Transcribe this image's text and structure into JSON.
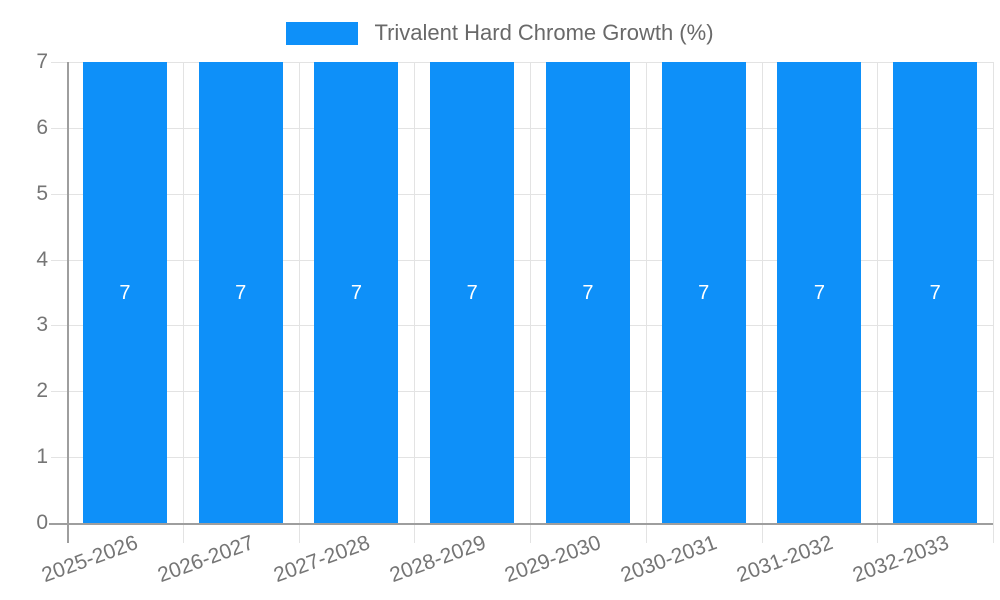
{
  "legend": {
    "series_label": "Trivalent Hard Chrome Growth (%)"
  },
  "colors": {
    "bar": "#0e90f9",
    "bar_label": "#ffffff",
    "grid": "#e3e3e3",
    "axis": "#9e9e9e",
    "tick_text": "#757575",
    "legend_text": "#696969"
  },
  "chart_data": {
    "type": "bar",
    "title": "Trivalent Hard Chrome Growth (%)",
    "categories": [
      "2025-2026",
      "2026-2027",
      "2027-2028",
      "2028-2029",
      "2029-2030",
      "2030-2031",
      "2031-2032",
      "2032-2033"
    ],
    "series": [
      {
        "name": "Trivalent Hard Chrome Growth (%)",
        "values": [
          7,
          7,
          7,
          7,
          7,
          7,
          7,
          7
        ]
      }
    ],
    "data_labels": [
      "7",
      "7",
      "7",
      "7",
      "7",
      "7",
      "7",
      "7"
    ],
    "xlabel": "",
    "ylabel": "",
    "ylim": [
      0,
      7
    ],
    "yticks": [
      0,
      1,
      2,
      3,
      4,
      5,
      6,
      7
    ],
    "grid": true,
    "legend_position": "top"
  }
}
